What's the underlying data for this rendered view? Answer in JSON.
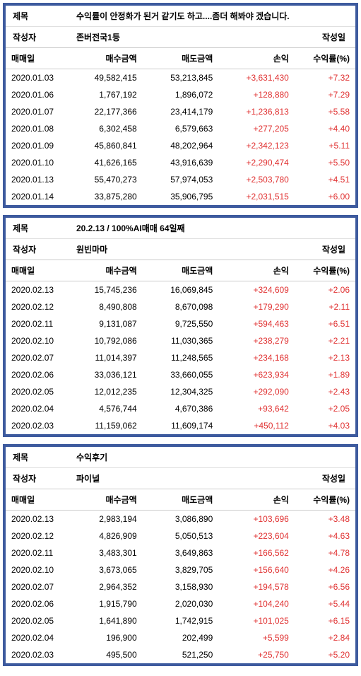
{
  "labels": {
    "title": "제목",
    "author": "작성자",
    "date": "작성일",
    "cols": {
      "date": "매매일",
      "buy": "매수금액",
      "sell": "매도금액",
      "pl": "손익",
      "rate": "수익률(%)"
    }
  },
  "colors": {
    "border": "#3d5a9e",
    "profit": "#e03030",
    "text": "#000000",
    "bg": "#ffffff",
    "divider": "#e0e0e0"
  },
  "cards": [
    {
      "title": "수익률이 안정화가 된거 같기도 하고....좀더 해봐야 겠습니다.",
      "author": "존버전국1등",
      "rows": [
        {
          "date": "2020.01.03",
          "buy": "49,582,415",
          "sell": "53,213,845",
          "pl": "+3,631,430",
          "rate": "+7.32"
        },
        {
          "date": "2020.01.06",
          "buy": "1,767,192",
          "sell": "1,896,072",
          "pl": "+128,880",
          "rate": "+7.29"
        },
        {
          "date": "2020.01.07",
          "buy": "22,177,366",
          "sell": "23,414,179",
          "pl": "+1,236,813",
          "rate": "+5.58"
        },
        {
          "date": "2020.01.08",
          "buy": "6,302,458",
          "sell": "6,579,663",
          "pl": "+277,205",
          "rate": "+4.40"
        },
        {
          "date": "2020.01.09",
          "buy": "45,860,841",
          "sell": "48,202,964",
          "pl": "+2,342,123",
          "rate": "+5.11"
        },
        {
          "date": "2020.01.10",
          "buy": "41,626,165",
          "sell": "43,916,639",
          "pl": "+2,290,474",
          "rate": "+5.50"
        },
        {
          "date": "2020.01.13",
          "buy": "55,470,273",
          "sell": "57,974,053",
          "pl": "+2,503,780",
          "rate": "+4.51"
        },
        {
          "date": "2020.01.14",
          "buy": "33,875,280",
          "sell": "35,906,795",
          "pl": "+2,031,515",
          "rate": "+6.00"
        }
      ]
    },
    {
      "title": "20.2.13 / 100%AI매매 64일째",
      "author": "원빈마마",
      "rows": [
        {
          "date": "2020.02.13",
          "buy": "15,745,236",
          "sell": "16,069,845",
          "pl": "+324,609",
          "rate": "+2.06"
        },
        {
          "date": "2020.02.12",
          "buy": "8,490,808",
          "sell": "8,670,098",
          "pl": "+179,290",
          "rate": "+2.11"
        },
        {
          "date": "2020.02.11",
          "buy": "9,131,087",
          "sell": "9,725,550",
          "pl": "+594,463",
          "rate": "+6.51"
        },
        {
          "date": "2020.02.10",
          "buy": "10,792,086",
          "sell": "11,030,365",
          "pl": "+238,279",
          "rate": "+2.21"
        },
        {
          "date": "2020.02.07",
          "buy": "11,014,397",
          "sell": "11,248,565",
          "pl": "+234,168",
          "rate": "+2.13"
        },
        {
          "date": "2020.02.06",
          "buy": "33,036,121",
          "sell": "33,660,055",
          "pl": "+623,934",
          "rate": "+1.89"
        },
        {
          "date": "2020.02.05",
          "buy": "12,012,235",
          "sell": "12,304,325",
          "pl": "+292,090",
          "rate": "+2.43"
        },
        {
          "date": "2020.02.04",
          "buy": "4,576,744",
          "sell": "4,670,386",
          "pl": "+93,642",
          "rate": "+2.05"
        },
        {
          "date": "2020.02.03",
          "buy": "11,159,062",
          "sell": "11,609,174",
          "pl": "+450,112",
          "rate": "+4.03"
        }
      ]
    },
    {
      "title": "수익후기",
      "author": "파이널",
      "rows": [
        {
          "date": "2020.02.13",
          "buy": "2,983,194",
          "sell": "3,086,890",
          "pl": "+103,696",
          "rate": "+3.48"
        },
        {
          "date": "2020.02.12",
          "buy": "4,826,909",
          "sell": "5,050,513",
          "pl": "+223,604",
          "rate": "+4.63"
        },
        {
          "date": "2020.02.11",
          "buy": "3,483,301",
          "sell": "3,649,863",
          "pl": "+166,562",
          "rate": "+4.78"
        },
        {
          "date": "2020.02.10",
          "buy": "3,673,065",
          "sell": "3,829,705",
          "pl": "+156,640",
          "rate": "+4.26"
        },
        {
          "date": "2020.02.07",
          "buy": "2,964,352",
          "sell": "3,158,930",
          "pl": "+194,578",
          "rate": "+6.56"
        },
        {
          "date": "2020.02.06",
          "buy": "1,915,790",
          "sell": "2,020,030",
          "pl": "+104,240",
          "rate": "+5.44"
        },
        {
          "date": "2020.02.05",
          "buy": "1,641,890",
          "sell": "1,742,915",
          "pl": "+101,025",
          "rate": "+6.15"
        },
        {
          "date": "2020.02.04",
          "buy": "196,900",
          "sell": "202,499",
          "pl": "+5,599",
          "rate": "+2.84"
        },
        {
          "date": "2020.02.03",
          "buy": "495,500",
          "sell": "521,250",
          "pl": "+25,750",
          "rate": "+5.20"
        }
      ]
    }
  ]
}
